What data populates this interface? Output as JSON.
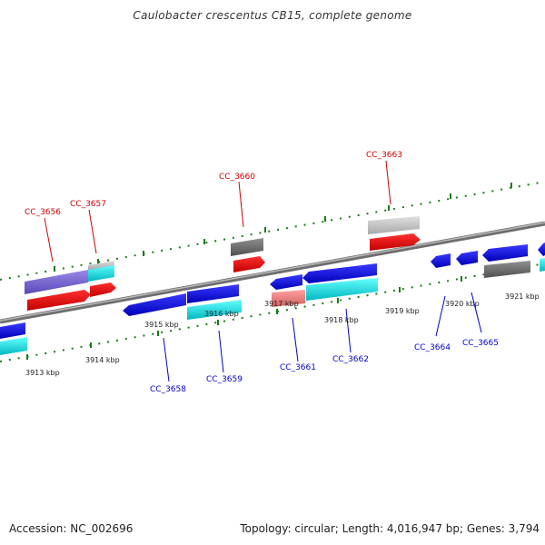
{
  "title": "Caulobacter crescentus CB15, complete genome",
  "footer": {
    "accession": "Accession: NC_002696",
    "summary": "Topology: circular; Length: 4,016,947 bp; Genes: 3,794"
  },
  "colors": {
    "forward_label": "#cc0000",
    "reverse_label": "#0000cc",
    "tick": "#1a7a1a",
    "backbone": "#888888"
  },
  "ruler_labels": [
    "3913 kbp",
    "3914 kbp",
    "3915 kbp",
    "3916 kbp",
    "3917 kbp",
    "3918 kbp",
    "3919 kbp",
    "3920 kbp",
    "3921 kbp"
  ],
  "gene_labels_forward": [
    "CC_3656",
    "CC_3657",
    "CC_3660",
    "CC_3663"
  ],
  "gene_labels_reverse": [
    "CC_3658",
    "CC_3659",
    "CC_3661",
    "CC_3662",
    "CC_3664",
    "CC_3665"
  ]
}
